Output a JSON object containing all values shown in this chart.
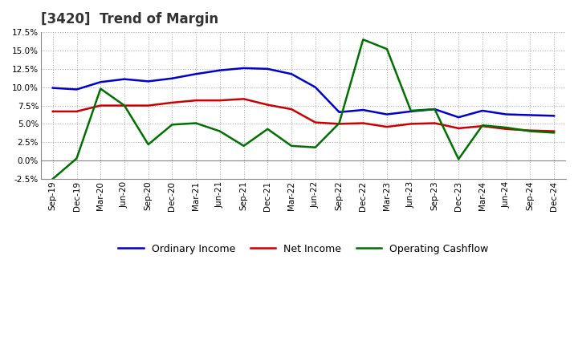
{
  "title": "[3420]  Trend of Margin",
  "x_labels": [
    "Sep-19",
    "Dec-19",
    "Mar-20",
    "Jun-20",
    "Sep-20",
    "Dec-20",
    "Mar-21",
    "Jun-21",
    "Sep-21",
    "Dec-21",
    "Mar-22",
    "Jun-22",
    "Sep-22",
    "Dec-22",
    "Mar-23",
    "Jun-23",
    "Sep-23",
    "Dec-23",
    "Mar-24",
    "Jun-24",
    "Sep-24",
    "Dec-24"
  ],
  "ordinary_income": [
    9.9,
    9.7,
    10.7,
    11.1,
    10.8,
    11.2,
    11.8,
    12.3,
    12.6,
    12.5,
    11.8,
    10.0,
    6.6,
    6.9,
    6.3,
    6.7,
    7.0,
    5.9,
    6.8,
    6.3,
    6.2,
    6.1
  ],
  "net_income": [
    6.7,
    6.7,
    7.5,
    7.5,
    7.5,
    7.9,
    8.2,
    8.2,
    8.4,
    7.6,
    7.0,
    5.2,
    5.0,
    5.1,
    4.6,
    5.0,
    5.1,
    4.4,
    4.7,
    4.3,
    4.1,
    4.0
  ],
  "operating_cashflow": [
    -2.5,
    0.3,
    9.8,
    7.5,
    2.2,
    4.9,
    5.1,
    4.0,
    2.0,
    4.3,
    2.0,
    1.8,
    5.1,
    16.5,
    15.2,
    6.8,
    7.0,
    0.2,
    4.8,
    4.5,
    4.0,
    3.8
  ],
  "oi_color": "#0000cc",
  "ni_color": "#cc0000",
  "ocf_color": "#007000",
  "ylim": [
    -2.5,
    17.5
  ],
  "yticks": [
    -2.5,
    0.0,
    2.5,
    5.0,
    7.5,
    10.0,
    12.5,
    15.0,
    17.5
  ],
  "bg_color": "#ffffff",
  "plot_bg_color": "#ffffff",
  "grid_color": "#aaaaaa",
  "line_width": 1.8,
  "legend_labels": [
    "Ordinary Income",
    "Net Income",
    "Operating Cashflow"
  ]
}
